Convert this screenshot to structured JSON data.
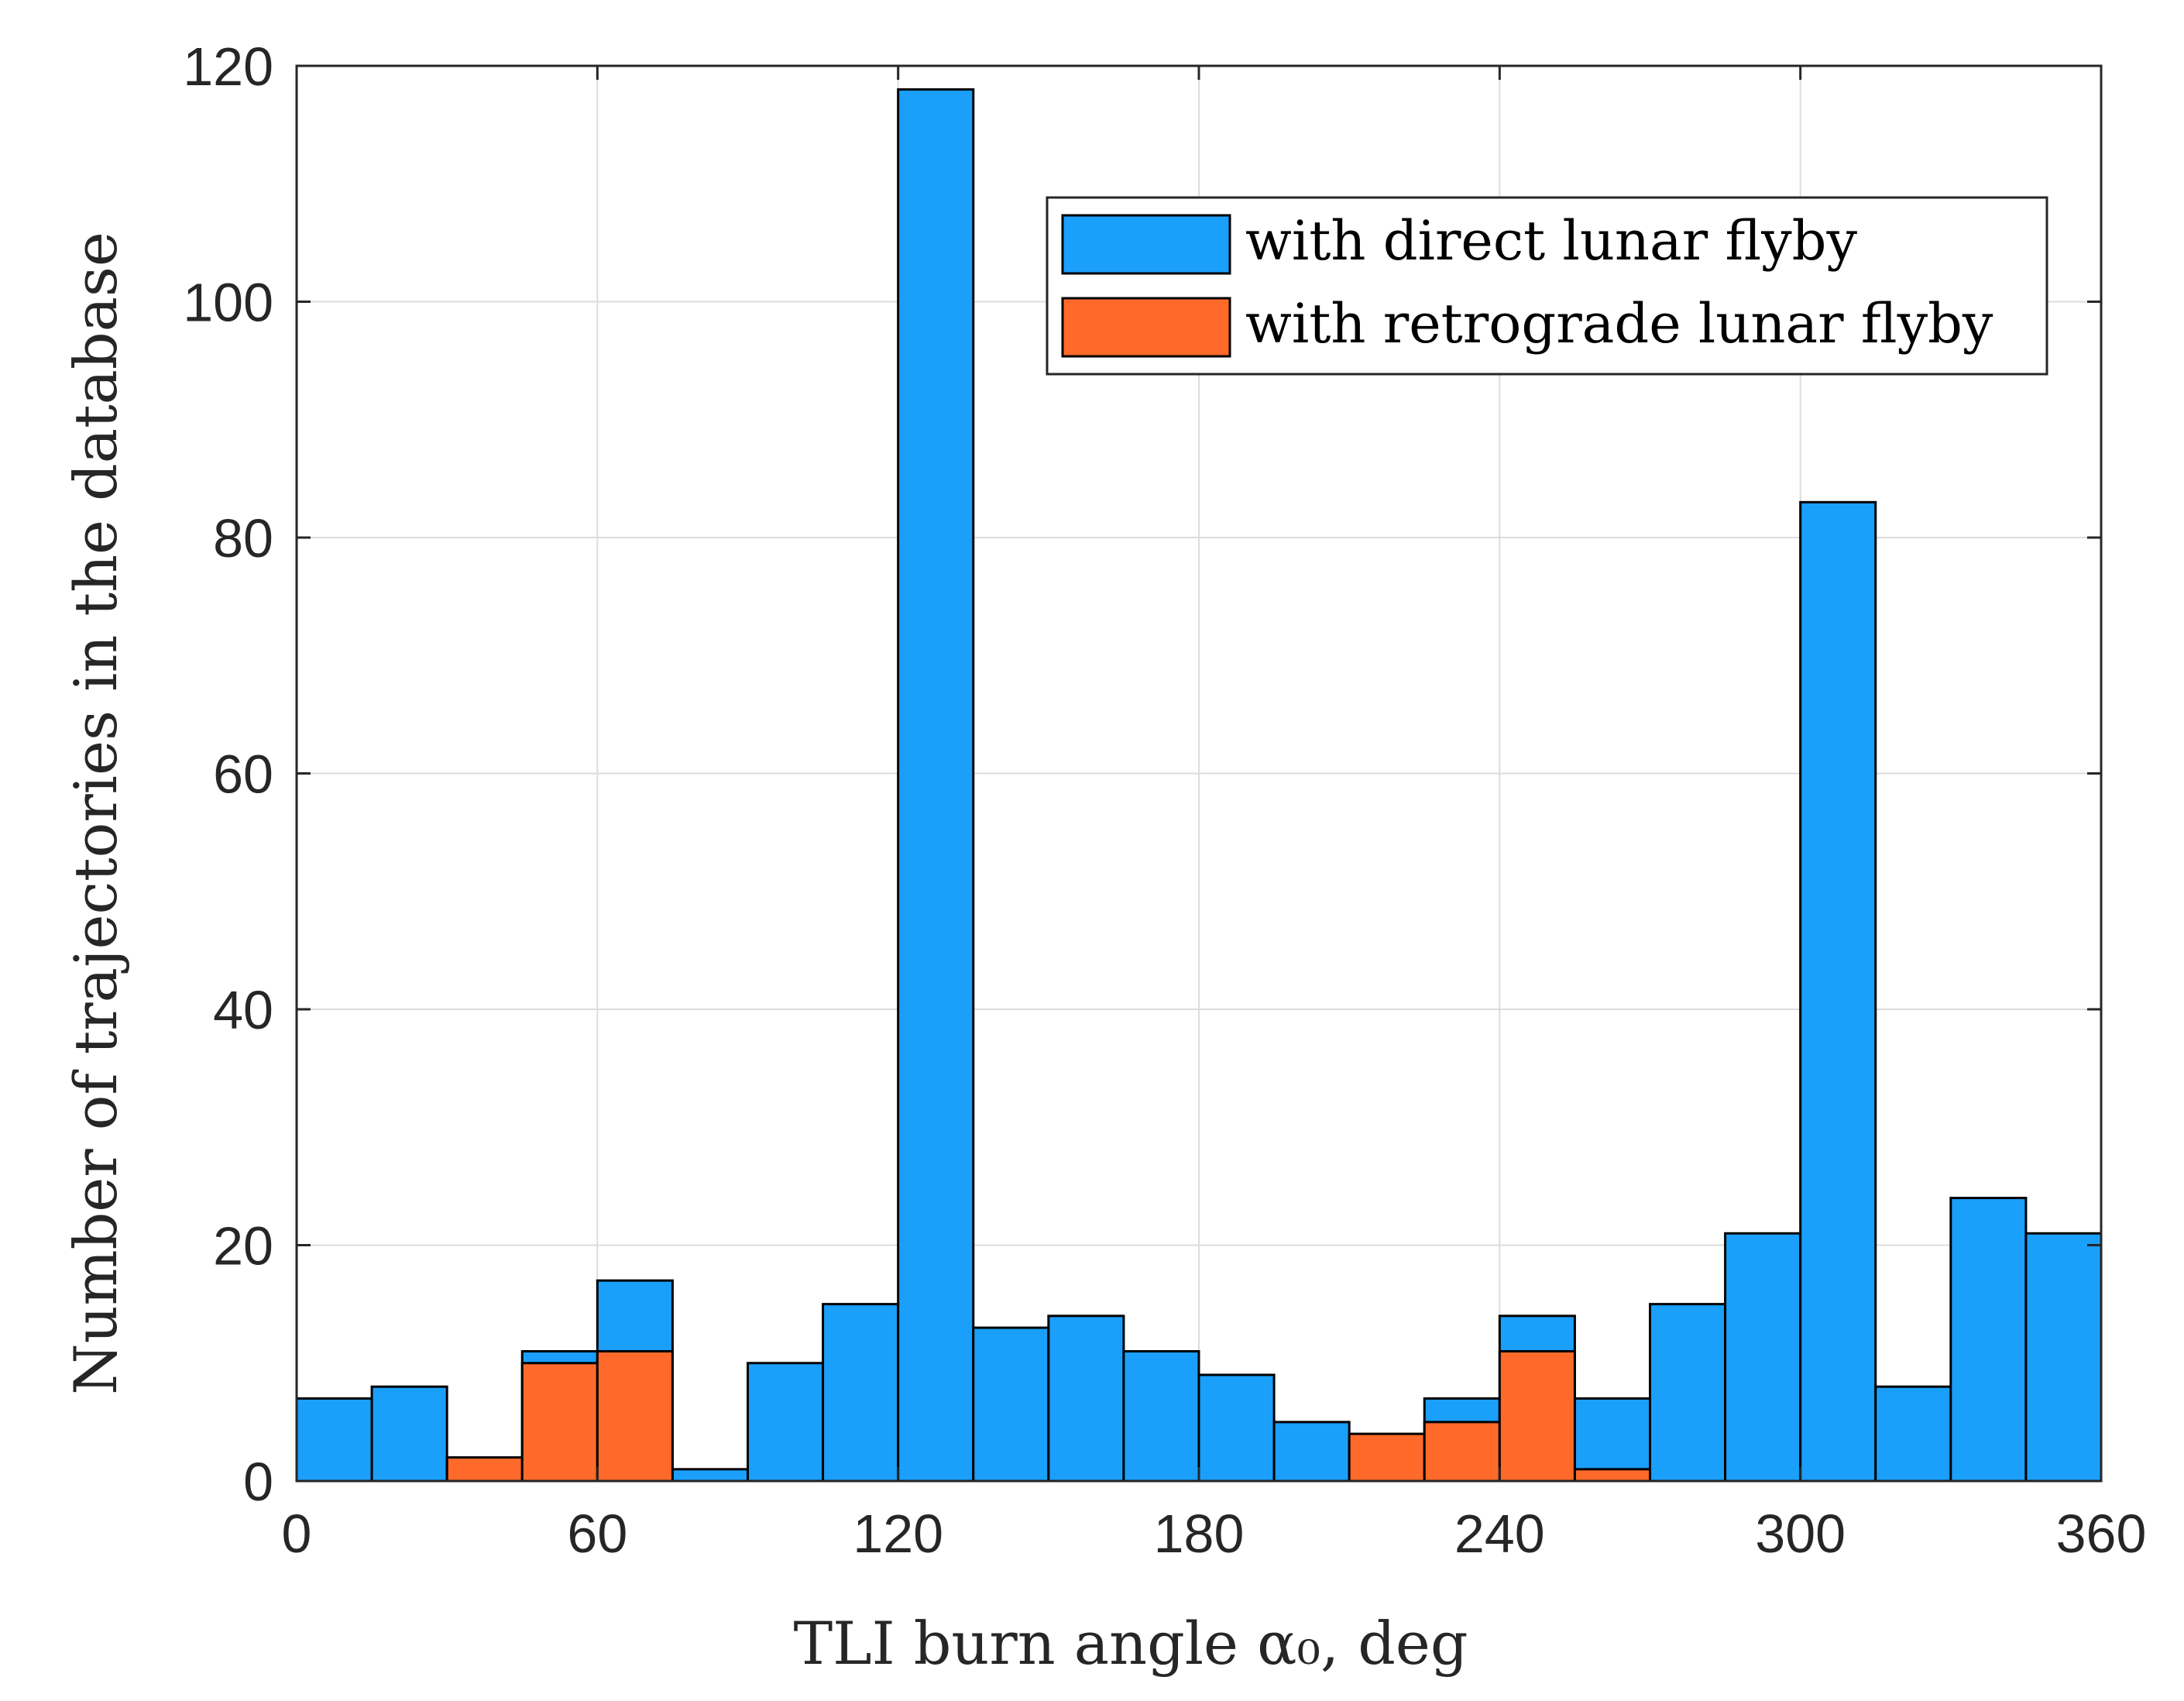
{
  "chart_data": {
    "type": "bar",
    "title": "",
    "xlabel": "TLI burn angle α₀, deg",
    "ylabel": "Number of trajectories in the database",
    "xlim": [
      0,
      360
    ],
    "ylim": [
      0,
      120
    ],
    "xticks": [
      0,
      60,
      120,
      180,
      240,
      300,
      360
    ],
    "yticks": [
      0,
      20,
      40,
      60,
      80,
      100,
      120
    ],
    "bin_width": 15,
    "bin_edges_start": [
      0,
      15,
      30,
      45,
      60,
      75,
      90,
      105,
      120,
      135,
      150,
      165,
      180,
      195,
      210,
      225,
      240,
      255,
      270,
      285,
      300,
      315,
      330,
      345
    ],
    "grid": true,
    "legend_position": "top-right",
    "series": [
      {
        "name": "with direct lunar flyby",
        "color": "#1a9ffa",
        "values": [
          7,
          8,
          0,
          11,
          17,
          1,
          10,
          15,
          118,
          13,
          14,
          11,
          9,
          5,
          0,
          7,
          14,
          7,
          15,
          21,
          83,
          8,
          24,
          21
        ]
      },
      {
        "name": "with retrograde lunar flyby",
        "color": "#ff6a2b",
        "values": [
          0,
          0,
          2,
          10,
          11,
          0,
          0,
          0,
          0,
          0,
          0,
          0,
          0,
          0,
          4,
          5,
          11,
          1,
          0,
          0,
          0,
          0,
          0,
          0
        ]
      }
    ]
  }
}
